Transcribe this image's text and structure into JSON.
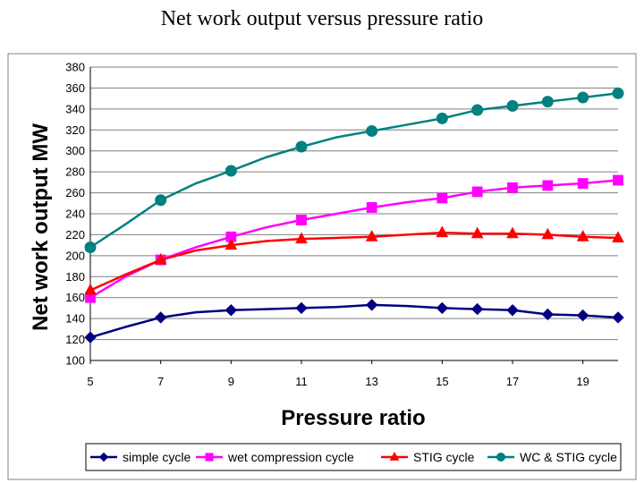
{
  "page_title": "Net work output versus pressure ratio",
  "colors": {
    "background": "#ffffff",
    "plot_area": "#ffffff",
    "gridline": "#7f7f7f",
    "frame": "#808080",
    "legend_border": "#000000"
  },
  "chart_data": {
    "type": "line",
    "title": "Net work output versus pressure ratio",
    "xlabel": "Pressure ratio",
    "ylabel": "Net work output MW",
    "xlim": [
      5,
      20
    ],
    "ylim": [
      100,
      380
    ],
    "x_ticks": [
      "5",
      "7",
      "9",
      "11",
      "13",
      "15",
      "17",
      "19"
    ],
    "y_ticks": [
      "100",
      "120",
      "140",
      "160",
      "180",
      "200",
      "220",
      "240",
      "260",
      "280",
      "300",
      "320",
      "340",
      "360",
      "380"
    ],
    "grid": "horizontal",
    "legend_position": "bottom",
    "series": [
      {
        "name": "simple cycle",
        "color": "#000080",
        "marker": "diamond",
        "x": [
          5,
          7,
          9,
          11,
          13,
          15,
          16,
          17,
          18,
          19,
          20
        ],
        "y": [
          122,
          141,
          148,
          150,
          153,
          150,
          149,
          148,
          144,
          143,
          141
        ],
        "line_x": [
          5,
          6,
          7,
          8,
          9,
          10,
          11,
          12,
          13,
          14,
          15,
          16,
          17,
          18,
          19,
          20
        ],
        "line_y": [
          122,
          132,
          141,
          146,
          148,
          149,
          150,
          151,
          153,
          152,
          150,
          149,
          148,
          144,
          143,
          141
        ]
      },
      {
        "name": "wet compression cycle",
        "color": "#ff00ff",
        "marker": "square",
        "x": [
          5,
          7,
          9,
          11,
          13,
          15,
          16,
          17,
          18,
          19,
          20
        ],
        "y": [
          160,
          196,
          218,
          234,
          246,
          255,
          261,
          265,
          267,
          269,
          272
        ],
        "line_x": [
          5,
          6,
          7,
          8,
          9,
          10,
          11,
          12,
          13,
          14,
          15,
          16,
          17,
          18,
          19,
          20
        ],
        "line_y": [
          160,
          180,
          196,
          208,
          218,
          227,
          234,
          240,
          246,
          251,
          255,
          261,
          265,
          267,
          269,
          272
        ]
      },
      {
        "name": "STIG cycle",
        "color": "#ff0000",
        "marker": "triangle",
        "x": [
          5,
          7,
          9,
          11,
          13,
          15,
          16,
          17,
          18,
          19,
          20
        ],
        "y": [
          167,
          196,
          210,
          216,
          218,
          222,
          221,
          221,
          220,
          218,
          217
        ],
        "line_x": [
          5,
          6,
          7,
          8,
          9,
          10,
          11,
          12,
          13,
          14,
          15,
          16,
          17,
          18,
          19,
          20
        ],
        "line_y": [
          167,
          182,
          196,
          205,
          210,
          214,
          216,
          217,
          218,
          220,
          222,
          221,
          221,
          220,
          218,
          217
        ]
      },
      {
        "name": "WC & STIG cycle",
        "color": "#008080",
        "marker": "circle",
        "x": [
          5,
          7,
          9,
          11,
          13,
          15,
          16,
          17,
          18,
          19,
          20
        ],
        "y": [
          208,
          253,
          281,
          304,
          319,
          331,
          339,
          343,
          347,
          351,
          355
        ],
        "line_x": [
          5,
          6,
          7,
          8,
          9,
          10,
          11,
          12,
          13,
          14,
          15,
          16,
          17,
          18,
          19,
          20
        ],
        "line_y": [
          208,
          230,
          253,
          269,
          281,
          294,
          304,
          313,
          319,
          325,
          331,
          339,
          343,
          347,
          351,
          355
        ]
      }
    ]
  }
}
